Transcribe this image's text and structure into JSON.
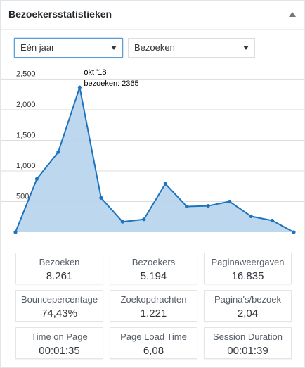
{
  "widget": {
    "title": "Bezoekersstatistieken"
  },
  "filters": {
    "period": "Eén jaar",
    "metric": "Bezoeken"
  },
  "chart_data": {
    "type": "area",
    "title": "",
    "xlabel": "",
    "ylabel": "",
    "ylim": [
      0,
      2700
    ],
    "yticks": [
      500,
      1000,
      1500,
      2000,
      2500
    ],
    "ytick_labels": [
      "500",
      "1,000",
      "1,500",
      "2,000",
      "2,500"
    ],
    "grid": true,
    "series": [
      {
        "values": [
          0,
          870,
          1310,
          2365,
          560,
          170,
          210,
          790,
          420,
          430,
          500,
          260,
          190,
          0
        ]
      }
    ],
    "annotation": {
      "point_index": 3,
      "lines": [
        "okt '18",
        "bezoeken: 2365"
      ]
    },
    "colors": {
      "line": "#1e73be",
      "fill": "#b6d3ec"
    }
  },
  "stats": [
    {
      "label": "Bezoeken",
      "value": "8.261"
    },
    {
      "label": "Bezoekers",
      "value": "5.194"
    },
    {
      "label": "Paginaweergaven",
      "value": "16.835"
    },
    {
      "label": "Bouncepercentage",
      "value": "74,43%"
    },
    {
      "label": "Zoekopdrachten",
      "value": "1.221"
    },
    {
      "label": "Pagina's/bezoek",
      "value": "2,04"
    },
    {
      "label": "Time on Page",
      "value": "00:01:35"
    },
    {
      "label": "Page Load Time",
      "value": "6,08"
    },
    {
      "label": "Session Duration",
      "value": "00:01:39"
    }
  ]
}
